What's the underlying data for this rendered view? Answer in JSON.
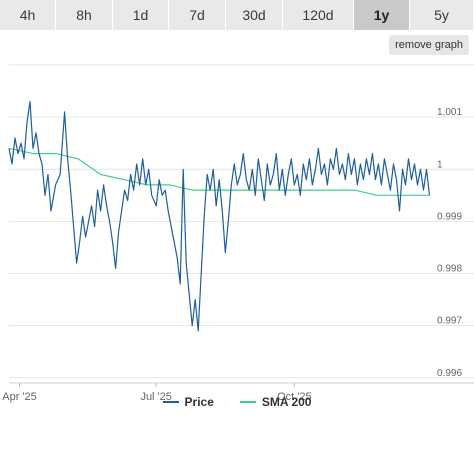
{
  "tabs": [
    {
      "label": "4h",
      "active": false
    },
    {
      "label": "8h",
      "active": false
    },
    {
      "label": "1d",
      "active": false
    },
    {
      "label": "7d",
      "active": false
    },
    {
      "label": "30d",
      "active": false
    },
    {
      "label": "120d",
      "active": false
    },
    {
      "label": "1y",
      "active": true
    },
    {
      "label": "5y",
      "active": false
    }
  ],
  "remove_graph_label": "remove graph",
  "colors": {
    "price": "#1f5f9b",
    "sma": "#3fcf8e",
    "grid": "#e6e6e6",
    "axis_text": "#666666"
  },
  "chart_data": {
    "type": "line",
    "x_axis": {
      "type": "date",
      "min": "2025-03-25",
      "max": "2026-01-02",
      "ticks": [
        {
          "label": "Apr '25",
          "date": "2025-04-01"
        },
        {
          "label": "Jul '25",
          "date": "2025-07-01"
        },
        {
          "label": "Oct '25",
          "date": "2025-10-01"
        }
      ]
    },
    "y_axis": {
      "min": 0.9959,
      "max": 1.002,
      "position": "right",
      "ticks": [
        0.996,
        0.997,
        0.998,
        0.999,
        1,
        1.001
      ],
      "tick_labels": [
        "0.996",
        "0.997",
        "0.998",
        "0.999",
        "1",
        "1.001"
      ]
    },
    "grid": true,
    "legend": "bottom-center",
    "series": [
      {
        "name": "Price",
        "points": [
          [
            "2025-03-25",
            1.0004
          ],
          [
            "2025-03-27",
            1.0001
          ],
          [
            "2025-03-29",
            1.0006
          ],
          [
            "2025-03-31",
            1.0003
          ],
          [
            "2025-04-02",
            1.0005
          ],
          [
            "2025-04-04",
            1.0002
          ],
          [
            "2025-04-06",
            1.0009
          ],
          [
            "2025-04-08",
            1.0013
          ],
          [
            "2025-04-10",
            1.0004
          ],
          [
            "2025-04-12",
            1.0007
          ],
          [
            "2025-04-14",
            1.0003
          ],
          [
            "2025-04-16",
            1.0001
          ],
          [
            "2025-04-18",
            0.9995
          ],
          [
            "2025-04-20",
            0.9999
          ],
          [
            "2025-04-22",
            0.9992
          ],
          [
            "2025-04-25",
            0.9997
          ],
          [
            "2025-04-28",
            0.9999
          ],
          [
            "2025-05-01",
            1.0011
          ],
          [
            "2025-05-03",
            1.0002
          ],
          [
            "2025-05-05",
            0.9996
          ],
          [
            "2025-05-07",
            0.9989
          ],
          [
            "2025-05-09",
            0.9982
          ],
          [
            "2025-05-11",
            0.9986
          ],
          [
            "2025-05-13",
            0.9991
          ],
          [
            "2025-05-15",
            0.9987
          ],
          [
            "2025-05-17",
            0.999
          ],
          [
            "2025-05-19",
            0.9993
          ],
          [
            "2025-05-21",
            0.9989
          ],
          [
            "2025-05-23",
            0.9996
          ],
          [
            "2025-05-25",
            0.9992
          ],
          [
            "2025-05-27",
            0.9997
          ],
          [
            "2025-05-29",
            0.9993
          ],
          [
            "2025-05-31",
            0.999
          ],
          [
            "2025-06-02",
            0.9986
          ],
          [
            "2025-06-04",
            0.9981
          ],
          [
            "2025-06-06",
            0.9988
          ],
          [
            "2025-06-08",
            0.9992
          ],
          [
            "2025-06-10",
            0.9996
          ],
          [
            "2025-06-12",
            0.9994
          ],
          [
            "2025-06-14",
            0.9999
          ],
          [
            "2025-06-16",
            0.9996
          ],
          [
            "2025-06-18",
            1.0001
          ],
          [
            "2025-06-20",
            0.9997
          ],
          [
            "2025-06-22",
            1.0002
          ],
          [
            "2025-06-24",
            0.9997
          ],
          [
            "2025-06-26",
            1.0
          ],
          [
            "2025-06-28",
            0.9995
          ],
          [
            "2025-07-01",
            0.9993
          ],
          [
            "2025-07-03",
            0.9998
          ],
          [
            "2025-07-05",
            0.9995
          ],
          [
            "2025-07-07",
            0.9996
          ],
          [
            "2025-07-09",
            0.9992
          ],
          [
            "2025-07-11",
            0.9989
          ],
          [
            "2025-07-13",
            0.9986
          ],
          [
            "2025-07-15",
            0.9983
          ],
          [
            "2025-07-17",
            0.9978
          ],
          [
            "2025-07-19",
            1.0
          ],
          [
            "2025-07-21",
            0.9982
          ],
          [
            "2025-07-23",
            0.9976
          ],
          [
            "2025-07-25",
            0.997
          ],
          [
            "2025-07-27",
            0.9975
          ],
          [
            "2025-07-29",
            0.9969
          ],
          [
            "2025-07-31",
            0.998
          ],
          [
            "2025-08-02",
            0.9991
          ],
          [
            "2025-08-04",
            0.9999
          ],
          [
            "2025-08-06",
            0.9996
          ],
          [
            "2025-08-08",
            1.0
          ],
          [
            "2025-08-10",
            0.9993
          ],
          [
            "2025-08-12",
            0.9998
          ],
          [
            "2025-08-14",
            0.9992
          ],
          [
            "2025-08-16",
            0.9984
          ],
          [
            "2025-08-18",
            0.999
          ],
          [
            "2025-08-20",
            0.9997
          ],
          [
            "2025-08-22",
            1.0001
          ],
          [
            "2025-08-24",
            0.9997
          ],
          [
            "2025-08-26",
            0.9999
          ],
          [
            "2025-08-28",
            1.0003
          ],
          [
            "2025-08-30",
            0.9998
          ],
          [
            "2025-09-01",
            0.9996
          ],
          [
            "2025-09-03",
            1.0
          ],
          [
            "2025-09-05",
            0.9995
          ],
          [
            "2025-09-07",
            1.0002
          ],
          [
            "2025-09-09",
            0.9998
          ],
          [
            "2025-09-11",
            0.9994
          ],
          [
            "2025-09-13",
            1.0001
          ],
          [
            "2025-09-15",
            0.9997
          ],
          [
            "2025-09-17",
            0.9999
          ],
          [
            "2025-09-19",
            1.0003
          ],
          [
            "2025-09-21",
            0.9996
          ],
          [
            "2025-09-23",
            1.0
          ],
          [
            "2025-09-25",
            0.9995
          ],
          [
            "2025-09-27",
            0.9999
          ],
          [
            "2025-09-29",
            1.0002
          ],
          [
            "2025-10-01",
            0.9997
          ],
          [
            "2025-10-03",
            0.9999
          ],
          [
            "2025-10-05",
            0.9995
          ],
          [
            "2025-10-07",
            1.0001
          ],
          [
            "2025-10-09",
            0.9998
          ],
          [
            "2025-10-11",
            1.0002
          ],
          [
            "2025-10-13",
            0.9997
          ],
          [
            "2025-10-15",
            1.0
          ],
          [
            "2025-10-17",
            1.0004
          ],
          [
            "2025-10-19",
            0.9999
          ],
          [
            "2025-10-21",
            1.0001
          ],
          [
            "2025-10-23",
            0.9997
          ],
          [
            "2025-10-25",
            1.0002
          ],
          [
            "2025-10-27",
            1.0
          ],
          [
            "2025-10-29",
            1.0004
          ],
          [
            "2025-10-31",
            0.9999
          ],
          [
            "2025-11-02",
            1.0001
          ],
          [
            "2025-11-04",
            0.9998
          ],
          [
            "2025-11-06",
            1.0003
          ],
          [
            "2025-11-08",
            0.9999
          ],
          [
            "2025-11-10",
            1.0002
          ],
          [
            "2025-11-12",
            0.9997
          ],
          [
            "2025-11-14",
            1.0001
          ],
          [
            "2025-11-16",
            0.9998
          ],
          [
            "2025-11-18",
            1.0002
          ],
          [
            "2025-11-20",
            0.9999
          ],
          [
            "2025-11-22",
            1.0003
          ],
          [
            "2025-11-24",
            0.9998
          ],
          [
            "2025-11-26",
            1.0001
          ],
          [
            "2025-11-28",
            0.9997
          ],
          [
            "2025-11-30",
            1.0002
          ],
          [
            "2025-12-02",
            0.9999
          ],
          [
            "2025-12-04",
            0.9996
          ],
          [
            "2025-12-06",
            1.0001
          ],
          [
            "2025-12-08",
            0.9998
          ],
          [
            "2025-12-10",
            0.9992
          ],
          [
            "2025-12-12",
            1.0
          ],
          [
            "2025-12-14",
            0.9997
          ],
          [
            "2025-12-16",
            1.0002
          ],
          [
            "2025-12-18",
            0.9998
          ],
          [
            "2025-12-20",
            1.0001
          ],
          [
            "2025-12-22",
            0.9997
          ],
          [
            "2025-12-24",
            1.0
          ],
          [
            "2025-12-26",
            0.9996
          ],
          [
            "2025-12-28",
            1.0
          ],
          [
            "2025-12-30",
            0.9995
          ]
        ]
      },
      {
        "name": "SMA 200",
        "points": [
          [
            "2025-03-25",
            1.0004
          ],
          [
            "2025-04-10",
            1.0003
          ],
          [
            "2025-04-25",
            1.0003
          ],
          [
            "2025-05-10",
            1.0002
          ],
          [
            "2025-05-25",
            0.9999
          ],
          [
            "2025-06-10",
            0.9998
          ],
          [
            "2025-06-25",
            0.9997
          ],
          [
            "2025-07-10",
            0.9997
          ],
          [
            "2025-07-25",
            0.9996
          ],
          [
            "2025-08-10",
            0.9996
          ],
          [
            "2025-08-25",
            0.9996
          ],
          [
            "2025-09-10",
            0.9996
          ],
          [
            "2025-09-25",
            0.9996
          ],
          [
            "2025-10-10",
            0.9996
          ],
          [
            "2025-10-25",
            0.9996
          ],
          [
            "2025-11-10",
            0.9996
          ],
          [
            "2025-11-25",
            0.9995
          ],
          [
            "2025-12-10",
            0.9995
          ],
          [
            "2025-12-30",
            0.9995
          ]
        ]
      }
    ]
  }
}
